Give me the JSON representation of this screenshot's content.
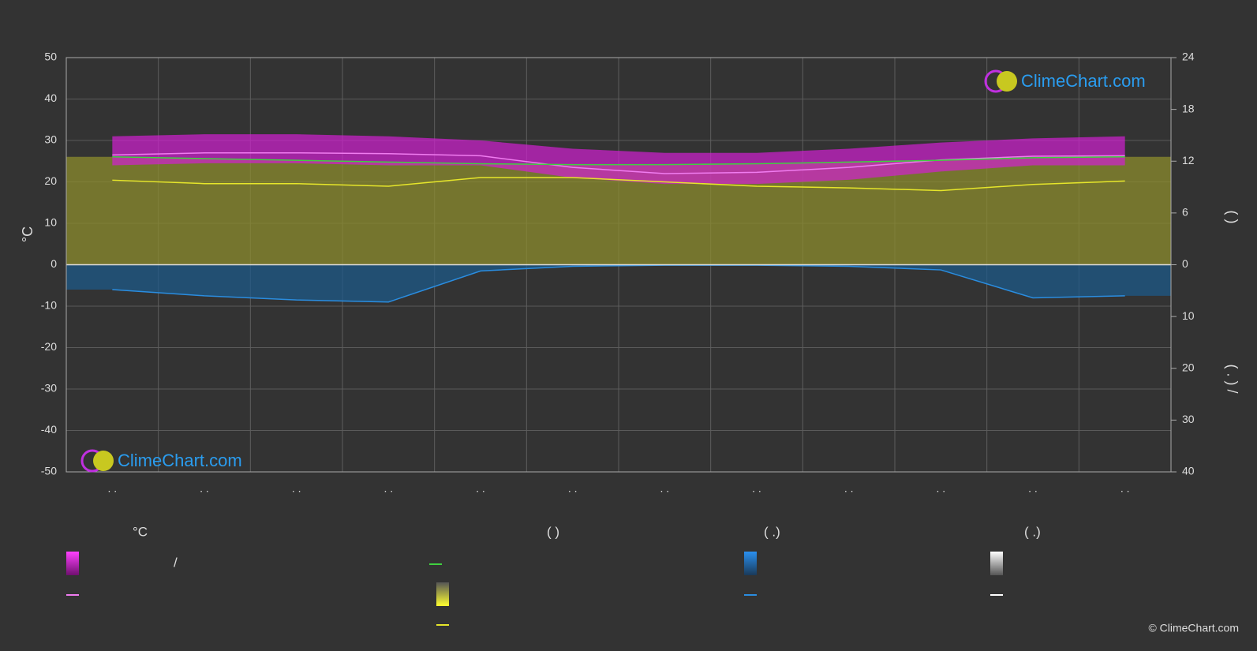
{
  "chart_data": {
    "type": "climate",
    "y_label": "°C",
    "y2_label_top": "(     )",
    "y2_label_bottom": "(  .  )   /",
    "categories": [
      ". .",
      ". .",
      ". .",
      ". .",
      ". .",
      ". .",
      ". .",
      ". .",
      ". .",
      ". .",
      ". .",
      ". ."
    ],
    "ylim": [
      -50,
      50
    ],
    "yticks": [
      -50,
      -40,
      -30,
      -20,
      -10,
      0,
      10,
      20,
      30,
      40,
      50
    ],
    "sunshine_axis": {
      "lim": [
        0,
        24
      ],
      "ticks": [
        0,
        6,
        12,
        18,
        24
      ]
    },
    "precipitation_axis": {
      "lim": [
        0,
        40
      ],
      "ticks": [
        10,
        20,
        30,
        40
      ]
    },
    "grid": true,
    "temperature_band": {
      "name": "/",
      "color": "#d21fd2",
      "max": [
        31,
        31.5,
        31.5,
        31,
        30,
        28,
        27,
        27,
        28,
        29.5,
        30.5,
        31
      ],
      "min": [
        24,
        24.5,
        24.5,
        24,
        24,
        21,
        19.5,
        19.5,
        20.5,
        22.5,
        24,
        24
      ]
    },
    "series": [
      {
        "key": "temperature",
        "color": "#f07cf0",
        "axis": "y",
        "values": [
          26.5,
          27,
          27,
          26.8,
          26.3,
          23.5,
          22,
          22.3,
          23.5,
          25.3,
          26.2,
          26.3
        ]
      },
      {
        "key": "daylight",
        "color": "#3fd13f",
        "axis": "sunshine",
        "fill": "#8c8c2e",
        "values": [
          12.5,
          12.3,
          12.1,
          11.9,
          11.7,
          11.6,
          11.6,
          11.7,
          11.9,
          12.1,
          12.4,
          12.5
        ]
      },
      {
        "key": "sunshine",
        "color": "#e6e62a",
        "axis": "sunshine",
        "values": [
          9.8,
          9.4,
          9.4,
          9.1,
          10.1,
          10.1,
          9.6,
          9.1,
          8.9,
          8.6,
          9.3,
          9.7
        ]
      },
      {
        "key": "precipitation",
        "color": "#2a8de0",
        "axis": "precipitation",
        "fill": "#1e5a88",
        "values": [
          4.8,
          6,
          6.8,
          7.2,
          1.2,
          0.3,
          0.1,
          0.1,
          0.3,
          1.0,
          6.4,
          6
        ]
      }
    ],
    "legend_headers": [
      "°C",
      "(          )",
      "(    .)",
      "(    .)"
    ],
    "logo_text": "ClimeChart.com",
    "copyright": "© ClimeChart.com"
  }
}
